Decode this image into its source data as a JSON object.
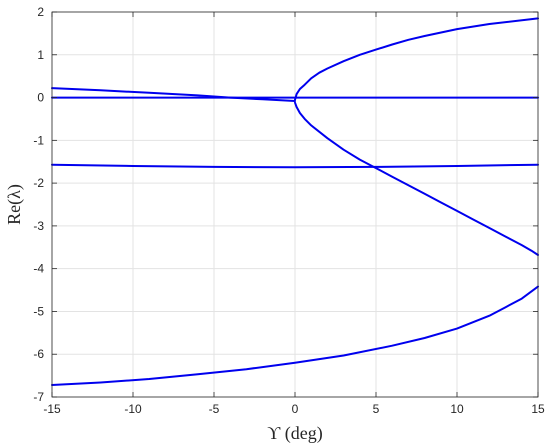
{
  "chart_data": {
    "type": "line",
    "xlabel": "ϒ (deg)",
    "ylabel": "Re(λ)",
    "xlim": [
      -15,
      15
    ],
    "ylim": [
      -7,
      2
    ],
    "xticks": [
      -15,
      -10,
      -5,
      0,
      5,
      10,
      15
    ],
    "yticks": [
      -7,
      -6,
      -5,
      -4,
      -3,
      -2,
      -1,
      0,
      1,
      2
    ],
    "grid": true,
    "legend": "none",
    "line_color": "#0000ee",
    "series": [
      {
        "x": [
          -15,
          -10,
          -5,
          -2,
          0,
          2,
          5,
          10,
          15
        ],
        "y": [
          0.0,
          0.0,
          0.0,
          0.0,
          0.0,
          0.0,
          0.0,
          0.0,
          0.0
        ]
      },
      {
        "x": [
          -15,
          -12,
          -9,
          -6,
          -4,
          -2,
          -1,
          0
        ],
        "y": [
          0.22,
          0.17,
          0.11,
          0.05,
          0.0,
          -0.04,
          -0.06,
          -0.08
        ]
      },
      {
        "x": [
          0,
          0.1,
          0.3,
          0.6,
          1,
          1.5,
          2,
          3,
          4,
          5,
          6,
          7,
          8,
          10,
          12,
          15
        ],
        "y": [
          -0.05,
          0.08,
          0.2,
          0.3,
          0.45,
          0.58,
          0.68,
          0.85,
          1.0,
          1.12,
          1.24,
          1.35,
          1.44,
          1.6,
          1.72,
          1.85
        ]
      },
      {
        "x": [
          0,
          0.1,
          0.3,
          0.6,
          1,
          2,
          3,
          4,
          5,
          6,
          7,
          8,
          9,
          10,
          11,
          12,
          13,
          14,
          14.6,
          15
        ],
        "y": [
          -0.12,
          -0.22,
          -0.36,
          -0.5,
          -0.65,
          -0.95,
          -1.22,
          -1.45,
          -1.65,
          -1.85,
          -2.05,
          -2.25,
          -2.45,
          -2.65,
          -2.85,
          -3.05,
          -3.25,
          -3.45,
          -3.58,
          -3.68
        ]
      },
      {
        "x": [
          -15,
          -10,
          -5,
          0,
          5,
          10,
          15
        ],
        "y": [
          -1.57,
          -1.6,
          -1.62,
          -1.63,
          -1.62,
          -1.6,
          -1.57
        ]
      },
      {
        "x": [
          -15,
          -12,
          -9,
          -6,
          -3,
          0,
          3,
          6,
          8,
          10,
          12,
          13,
          14,
          15
        ],
        "y": [
          -6.72,
          -6.66,
          -6.58,
          -6.47,
          -6.35,
          -6.2,
          -6.03,
          -5.8,
          -5.62,
          -5.4,
          -5.1,
          -4.9,
          -4.7,
          -4.42
        ]
      }
    ]
  }
}
